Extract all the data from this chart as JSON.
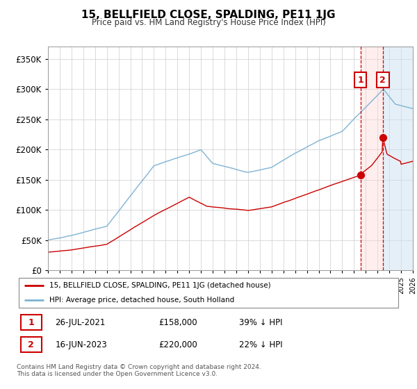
{
  "title": "15, BELLFIELD CLOSE, SPALDING, PE11 1JG",
  "subtitle": "Price paid vs. HM Land Registry's House Price Index (HPI)",
  "ylim": [
    0,
    370000
  ],
  "yticks": [
    0,
    50000,
    100000,
    150000,
    200000,
    250000,
    300000,
    350000
  ],
  "xlim_start": 1995.0,
  "xlim_end": 2026.0,
  "hpi_color": "#7fb3d3",
  "price_color": "#cc0000",
  "t1_x": 2021.55,
  "t2_x": 2023.45,
  "t1_price": 158000,
  "t2_price": 220000,
  "legend_label1": "15, BELLFIELD CLOSE, SPALDING, PE11 1JG (detached house)",
  "legend_label2": "HPI: Average price, detached house, South Holland",
  "footer": "Contains HM Land Registry data © Crown copyright and database right 2024.\nThis data is licensed under the Open Government Licence v3.0.",
  "table_row1": [
    "1",
    "26-JUL-2021",
    "£158,000",
    "39% ↓ HPI"
  ],
  "table_row2": [
    "2",
    "16-JUN-2023",
    "£220,000",
    "22% ↓ HPI"
  ]
}
